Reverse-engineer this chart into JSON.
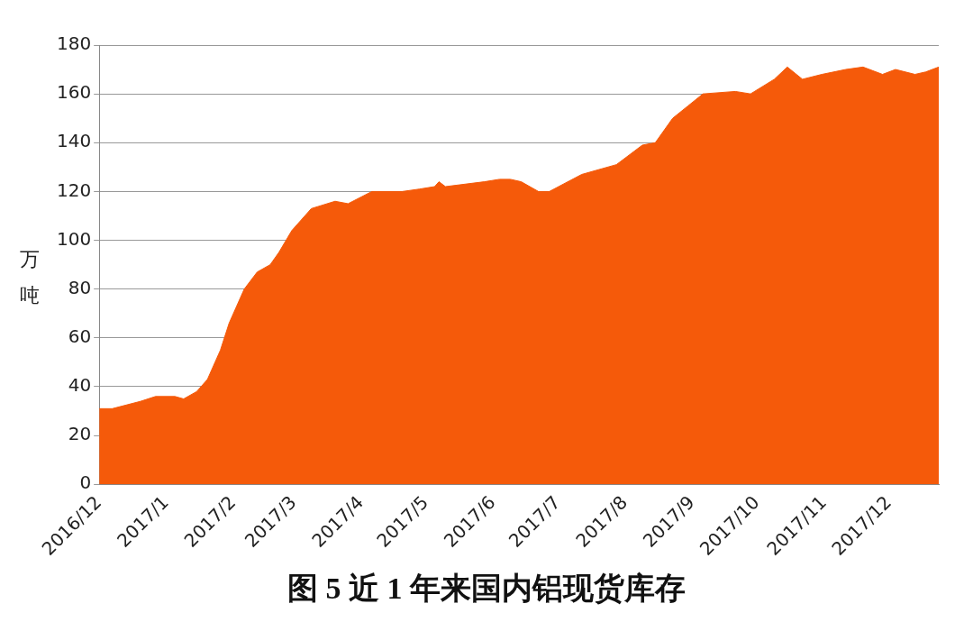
{
  "chart_data": {
    "type": "area",
    "title": "图 5  近 1 年来国内铝现货库存",
    "ylabel": "万吨",
    "x": [
      "2016-12-01",
      "2016-12-07",
      "2016-12-20",
      "2016-12-27",
      "2017-01-05",
      "2017-01-09",
      "2017-01-15",
      "2017-01-20",
      "2017-01-26",
      "2017-01-30",
      "2017-02-06",
      "2017-02-12",
      "2017-02-18",
      "2017-02-22",
      "2017-02-28",
      "2017-03-09",
      "2017-03-20",
      "2017-03-26",
      "2017-04-06",
      "2017-04-20",
      "2017-04-28",
      "2017-05-05",
      "2017-05-07",
      "2017-05-10",
      "2017-05-19",
      "2017-05-28",
      "2017-06-04",
      "2017-06-09",
      "2017-06-14",
      "2017-06-22",
      "2017-06-27",
      "2017-07-12",
      "2017-07-28",
      "2017-08-09",
      "2017-08-15",
      "2017-08-23",
      "2017-08-30",
      "2017-09-06",
      "2017-09-21",
      "2017-09-28",
      "2017-10-09",
      "2017-10-15",
      "2017-10-22",
      "2017-10-31",
      "2017-11-11",
      "2017-11-19",
      "2017-11-28",
      "2017-12-04",
      "2017-12-13",
      "2017-12-18",
      "2017-12-24"
    ],
    "values": [
      31,
      31,
      34,
      36,
      36,
      35,
      38,
      43,
      55,
      66,
      80,
      87,
      90,
      95,
      104,
      113,
      116,
      115,
      120,
      120,
      121,
      122,
      124,
      122,
      123,
      124,
      125,
      125,
      124,
      120,
      120,
      127,
      131,
      139,
      140,
      150,
      155,
      160,
      161,
      160,
      166,
      171,
      166,
      168,
      170,
      171,
      168,
      170,
      168,
      169,
      171
    ],
    "color": "#f55a0a",
    "xlim": [
      "2016-12-01",
      "2017-12-24"
    ],
    "xticks": [
      {
        "value": "2016-12-01",
        "label": "2016/12"
      },
      {
        "value": "2017-01-01",
        "label": "2017/1"
      },
      {
        "value": "2017-02-01",
        "label": "2017/2"
      },
      {
        "value": "2017-03-01",
        "label": "2017/3"
      },
      {
        "value": "2017-04-01",
        "label": "2017/4"
      },
      {
        "value": "2017-05-01",
        "label": "2017/5"
      },
      {
        "value": "2017-06-01",
        "label": "2017/6"
      },
      {
        "value": "2017-07-01",
        "label": "2017/7"
      },
      {
        "value": "2017-08-01",
        "label": "2017/8"
      },
      {
        "value": "2017-09-01",
        "label": "2017/9"
      },
      {
        "value": "2017-10-01",
        "label": "2017/10"
      },
      {
        "value": "2017-11-01",
        "label": "2017/11"
      },
      {
        "value": "2017-12-01",
        "label": "2017/12"
      }
    ],
    "ylim": [
      0,
      180
    ],
    "yticks": [
      0,
      20,
      40,
      60,
      80,
      100,
      120,
      140,
      160,
      180
    ],
    "grid": "y",
    "legend": false
  }
}
